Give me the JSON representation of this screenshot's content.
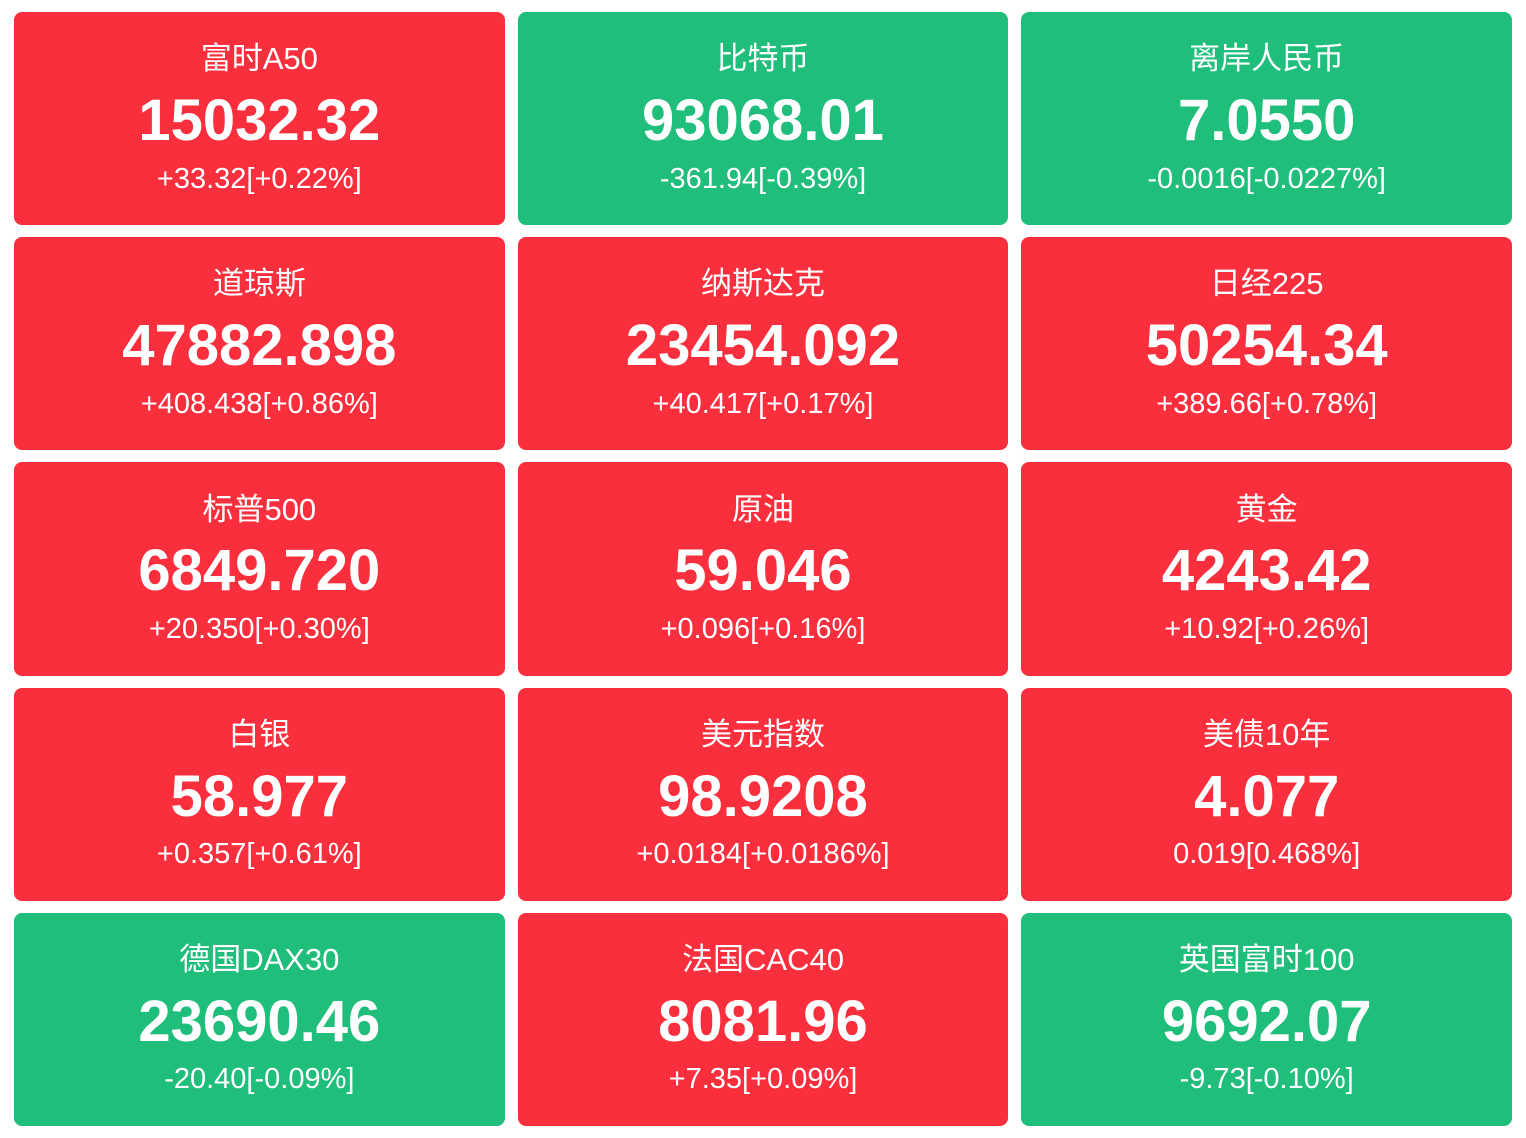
{
  "colors": {
    "up_background": "#fa2f3d",
    "down_background": "#1fbe7a",
    "text": "#ffffff",
    "page_background": "#ffffff"
  },
  "chart_data": {
    "type": "table",
    "layout": {
      "rows": 5,
      "columns": 3
    },
    "columns": [
      "instrument",
      "last_value",
      "change_and_percent",
      "direction"
    ],
    "tiles": [
      {
        "name": "富时A50",
        "value": "15032.32",
        "change": "+33.32[+0.22%]",
        "direction": "up"
      },
      {
        "name": "比特币",
        "value": "93068.01",
        "change": "-361.94[-0.39%]",
        "direction": "down"
      },
      {
        "name": "离岸人民币",
        "value": "7.0550",
        "change": "-0.0016[-0.0227%]",
        "direction": "down"
      },
      {
        "name": "道琼斯",
        "value": "47882.898",
        "change": "+408.438[+0.86%]",
        "direction": "up"
      },
      {
        "name": "纳斯达克",
        "value": "23454.092",
        "change": "+40.417[+0.17%]",
        "direction": "up"
      },
      {
        "name": "日经225",
        "value": "50254.34",
        "change": "+389.66[+0.78%]",
        "direction": "up"
      },
      {
        "name": "标普500",
        "value": "6849.720",
        "change": "+20.350[+0.30%]",
        "direction": "up"
      },
      {
        "name": "原油",
        "value": "59.046",
        "change": "+0.096[+0.16%]",
        "direction": "up"
      },
      {
        "name": "黄金",
        "value": "4243.42",
        "change": "+10.92[+0.26%]",
        "direction": "up"
      },
      {
        "name": "白银",
        "value": "58.977",
        "change": "+0.357[+0.61%]",
        "direction": "up"
      },
      {
        "name": "美元指数",
        "value": "98.9208",
        "change": "+0.0184[+0.0186%]",
        "direction": "up"
      },
      {
        "name": "美债10年",
        "value": "4.077",
        "change": "0.019[0.468%]",
        "direction": "up"
      },
      {
        "name": "德国DAX30",
        "value": "23690.46",
        "change": "-20.40[-0.09%]",
        "direction": "down"
      },
      {
        "name": "法国CAC40",
        "value": "8081.96",
        "change": "+7.35[+0.09%]",
        "direction": "up"
      },
      {
        "name": "英国富时100",
        "value": "9692.07",
        "change": "-9.73[-0.10%]",
        "direction": "down"
      }
    ]
  }
}
